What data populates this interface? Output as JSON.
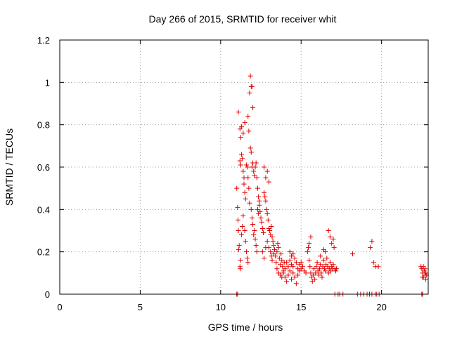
{
  "chart_data": {
    "type": "scatter",
    "title": "Day 266 of 2015, SRMTID for receiver whit",
    "xlabel": "GPS time / hours",
    "ylabel": "SRMTID / TECUs",
    "xlim": [
      0,
      22.9
    ],
    "ylim": [
      0,
      1.2
    ],
    "xticks": [
      0,
      5,
      10,
      15,
      20
    ],
    "yticks": [
      0,
      0.2,
      0.4,
      0.6,
      0.8,
      1,
      1.2
    ],
    "ytick_labels": [
      "0",
      "0.2",
      "0.4",
      "0.6",
      "0.8",
      "1",
      "1.2"
    ],
    "grid": true,
    "marker": "plus",
    "colors": {
      "series": "#e00000",
      "axes": "#000000",
      "grid": "#a0a0a0"
    },
    "series": [
      {
        "name": "SRMTID",
        "points": [
          [
            11.1,
            0.86
          ],
          [
            11.2,
            0.78
          ],
          [
            11.25,
            0.74
          ],
          [
            11.3,
            0.79
          ],
          [
            11.4,
            0.76
          ],
          [
            11.5,
            0.81
          ],
          [
            11.7,
            0.84
          ],
          [
            11.8,
            0.95
          ],
          [
            11.85,
            1.03
          ],
          [
            11.9,
            0.98
          ],
          [
            11.95,
            0.98
          ],
          [
            12.0,
            0.88
          ],
          [
            11.75,
            0.77
          ],
          [
            11.0,
            0.5
          ],
          [
            11.05,
            0.41
          ],
          [
            11.08,
            0.35
          ],
          [
            11.1,
            0.3
          ],
          [
            11.12,
            0.21
          ],
          [
            11.15,
            0.23
          ],
          [
            11.2,
            0.13
          ],
          [
            11.22,
            0.12
          ],
          [
            11.25,
            0.16
          ],
          [
            11.3,
            0.28
          ],
          [
            11.35,
            0.32
          ],
          [
            11.4,
            0.37
          ],
          [
            11.45,
            0.55
          ],
          [
            11.5,
            0.3
          ],
          [
            11.55,
            0.25
          ],
          [
            11.6,
            0.2
          ],
          [
            11.65,
            0.17
          ],
          [
            11.7,
            0.15
          ],
          [
            11.2,
            0.63
          ],
          [
            11.25,
            0.61
          ],
          [
            11.3,
            0.66
          ],
          [
            11.35,
            0.64
          ],
          [
            11.4,
            0.58
          ],
          [
            11.45,
            0.52
          ],
          [
            11.5,
            0.48
          ],
          [
            11.55,
            0.45
          ],
          [
            11.6,
            0.61
          ],
          [
            11.65,
            0.6
          ],
          [
            11.7,
            0.55
          ],
          [
            11.75,
            0.5
          ],
          [
            11.8,
            0.43
          ],
          [
            11.85,
            0.69
          ],
          [
            11.9,
            0.67
          ],
          [
            11.95,
            0.6
          ],
          [
            12.0,
            0.62
          ],
          [
            12.05,
            0.58
          ],
          [
            12.1,
            0.56
          ],
          [
            12.15,
            0.6
          ],
          [
            12.2,
            0.62
          ],
          [
            12.25,
            0.55
          ],
          [
            12.3,
            0.5
          ],
          [
            12.35,
            0.46
          ],
          [
            12.4,
            0.44
          ],
          [
            11.9,
            0.4
          ],
          [
            11.95,
            0.36
          ],
          [
            12.0,
            0.33
          ],
          [
            12.05,
            0.28
          ],
          [
            12.1,
            0.3
          ],
          [
            12.15,
            0.26
          ],
          [
            12.2,
            0.23
          ],
          [
            12.25,
            0.2
          ],
          [
            12.3,
            0.4
          ],
          [
            12.35,
            0.38
          ],
          [
            12.4,
            0.42
          ],
          [
            12.45,
            0.39
          ],
          [
            12.5,
            0.36
          ],
          [
            12.55,
            0.34
          ],
          [
            12.6,
            0.31
          ],
          [
            12.65,
            0.29
          ],
          [
            12.7,
            0.48
          ],
          [
            12.75,
            0.46
          ],
          [
            12.8,
            0.44
          ],
          [
            12.85,
            0.4
          ],
          [
            12.9,
            0.38
          ],
          [
            12.95,
            0.35
          ],
          [
            13.0,
            0.31
          ],
          [
            12.7,
            0.6
          ],
          [
            12.8,
            0.55
          ],
          [
            12.9,
            0.58
          ],
          [
            13.0,
            0.53
          ],
          [
            12.6,
            0.2
          ],
          [
            12.7,
            0.17
          ],
          [
            12.8,
            0.22
          ],
          [
            12.9,
            0.25
          ],
          [
            13.0,
            0.22
          ],
          [
            13.05,
            0.3
          ],
          [
            13.1,
            0.28
          ],
          [
            13.15,
            0.32
          ],
          [
            13.2,
            0.27
          ],
          [
            13.25,
            0.25
          ],
          [
            13.3,
            0.23
          ],
          [
            13.1,
            0.2
          ],
          [
            13.15,
            0.18
          ],
          [
            13.2,
            0.16
          ],
          [
            13.3,
            0.19
          ],
          [
            13.35,
            0.21
          ],
          [
            13.4,
            0.18
          ],
          [
            13.45,
            0.15
          ],
          [
            13.5,
            0.2
          ],
          [
            13.55,
            0.24
          ],
          [
            13.6,
            0.22
          ],
          [
            13.65,
            0.17
          ],
          [
            13.7,
            0.14
          ],
          [
            13.75,
            0.19
          ],
          [
            13.8,
            0.16
          ],
          [
            13.85,
            0.13
          ],
          [
            13.9,
            0.11
          ],
          [
            13.95,
            0.15
          ],
          [
            14.0,
            0.12
          ],
          [
            13.5,
            0.12
          ],
          [
            13.6,
            0.1
          ],
          [
            13.7,
            0.09
          ],
          [
            13.8,
            0.08
          ],
          [
            13.9,
            0.1
          ],
          [
            14.0,
            0.08
          ],
          [
            14.1,
            0.06
          ],
          [
            14.2,
            0.09
          ],
          [
            14.3,
            0.11
          ],
          [
            14.4,
            0.07
          ],
          [
            14.5,
            0.1
          ],
          [
            14.6,
            0.08
          ],
          [
            14.7,
            0.05
          ],
          [
            14.8,
            0.09
          ],
          [
            14.9,
            0.11
          ],
          [
            15.0,
            0.12
          ],
          [
            14.1,
            0.15
          ],
          [
            14.2,
            0.13
          ],
          [
            14.3,
            0.16
          ],
          [
            14.4,
            0.14
          ],
          [
            14.5,
            0.13
          ],
          [
            14.6,
            0.17
          ],
          [
            14.7,
            0.15
          ],
          [
            14.8,
            0.12
          ],
          [
            14.9,
            0.14
          ],
          [
            15.0,
            0.15
          ],
          [
            14.3,
            0.2
          ],
          [
            14.4,
            0.18
          ],
          [
            14.5,
            0.19
          ],
          [
            15.1,
            0.13
          ],
          [
            15.2,
            0.11
          ],
          [
            15.3,
            0.1
          ],
          [
            15.4,
            0.2
          ],
          [
            15.45,
            0.22
          ],
          [
            15.5,
            0.16
          ],
          [
            15.55,
            0.13
          ],
          [
            15.6,
            0.1
          ],
          [
            15.65,
            0.08
          ],
          [
            15.7,
            0.06
          ],
          [
            15.75,
            0.09
          ],
          [
            15.8,
            0.12
          ],
          [
            15.85,
            0.07
          ],
          [
            15.9,
            0.1
          ],
          [
            15.95,
            0.13
          ],
          [
            16.0,
            0.15
          ],
          [
            16.05,
            0.11
          ],
          [
            16.1,
            0.09
          ],
          [
            16.15,
            0.12
          ],
          [
            16.2,
            0.14
          ],
          [
            16.25,
            0.1
          ],
          [
            16.3,
            0.08
          ],
          [
            16.35,
            0.13
          ],
          [
            16.4,
            0.16
          ],
          [
            16.45,
            0.12
          ],
          [
            16.5,
            0.11
          ],
          [
            16.55,
            0.14
          ],
          [
            16.6,
            0.17
          ],
          [
            16.65,
            0.13
          ],
          [
            16.7,
            0.1
          ],
          [
            16.75,
            0.12
          ],
          [
            16.8,
            0.15
          ],
          [
            16.85,
            0.11
          ],
          [
            16.9,
            0.13
          ],
          [
            16.95,
            0.12
          ],
          [
            17.0,
            0.14
          ],
          [
            15.5,
            0.24
          ],
          [
            15.6,
            0.27
          ],
          [
            16.2,
            0.18
          ],
          [
            16.4,
            0.21
          ],
          [
            16.5,
            0.2
          ],
          [
            16.7,
            0.3
          ],
          [
            16.8,
            0.27
          ],
          [
            16.9,
            0.24
          ],
          [
            17.0,
            0.26
          ],
          [
            17.05,
            0.22
          ],
          [
            17.1,
            0.12
          ],
          [
            17.15,
            0.11
          ],
          [
            17.2,
            0.12
          ],
          [
            17.1,
            0.0
          ],
          [
            17.3,
            0.0
          ],
          [
            17.4,
            0.0
          ],
          [
            17.6,
            0.0
          ],
          [
            18.2,
            0.19
          ],
          [
            18.5,
            0.0
          ],
          [
            18.7,
            0.0
          ],
          [
            18.9,
            0.0
          ],
          [
            19.1,
            0.0
          ],
          [
            19.25,
            0.0
          ],
          [
            19.4,
            0.0
          ],
          [
            19.6,
            0.0
          ],
          [
            19.3,
            0.22
          ],
          [
            19.4,
            0.25
          ],
          [
            19.5,
            0.15
          ],
          [
            19.6,
            0.13
          ],
          [
            19.8,
            0.13
          ],
          [
            19.7,
            0.0
          ],
          [
            19.85,
            0.0
          ],
          [
            11.0,
            0.0
          ],
          [
            11.05,
            0.0
          ],
          [
            22.5,
            0.0
          ],
          [
            22.55,
            0.0
          ],
          [
            22.45,
            0.13
          ],
          [
            22.5,
            0.12
          ],
          [
            22.55,
            0.1
          ],
          [
            22.6,
            0.08
          ],
          [
            22.65,
            0.11
          ],
          [
            22.7,
            0.09
          ],
          [
            22.75,
            0.07
          ],
          [
            22.6,
            0.13
          ],
          [
            22.7,
            0.12
          ],
          [
            22.75,
            0.1
          ],
          [
            22.8,
            0.09
          ],
          [
            22.55,
            0.08
          ]
        ]
      }
    ]
  }
}
